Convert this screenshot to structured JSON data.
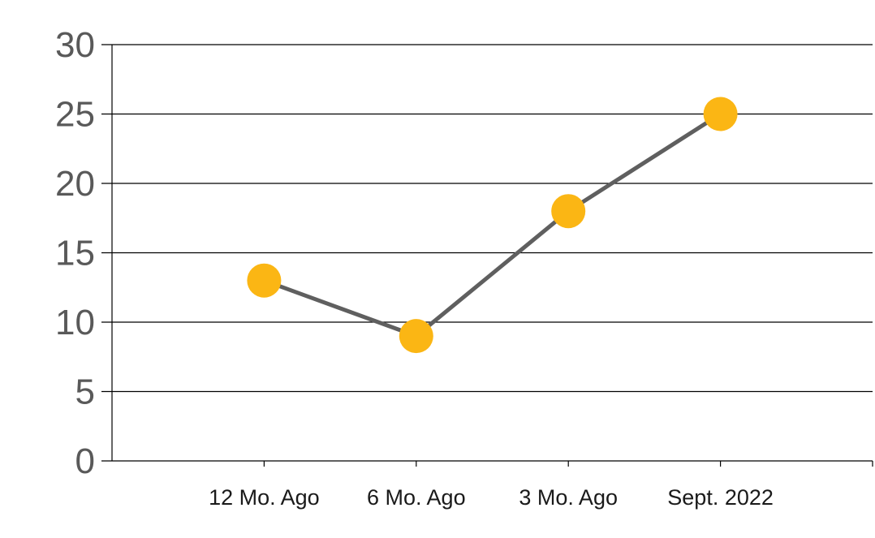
{
  "chart_data": {
    "type": "line",
    "categories": [
      "12 Mo. Ago",
      "6 Mo. Ago",
      "3 Mo. Ago",
      "Sept. 2022"
    ],
    "series": [
      {
        "values": [
          13,
          9,
          18,
          25
        ]
      }
    ],
    "ylim": [
      0,
      30
    ],
    "yticks": [
      0,
      5,
      10,
      15,
      20,
      25,
      30
    ],
    "grid": true,
    "legend": "none",
    "colors": {
      "line": "#5f5f5f",
      "marker": "#fbb614",
      "grid": "#000000",
      "tick_text": "#595959"
    }
  }
}
